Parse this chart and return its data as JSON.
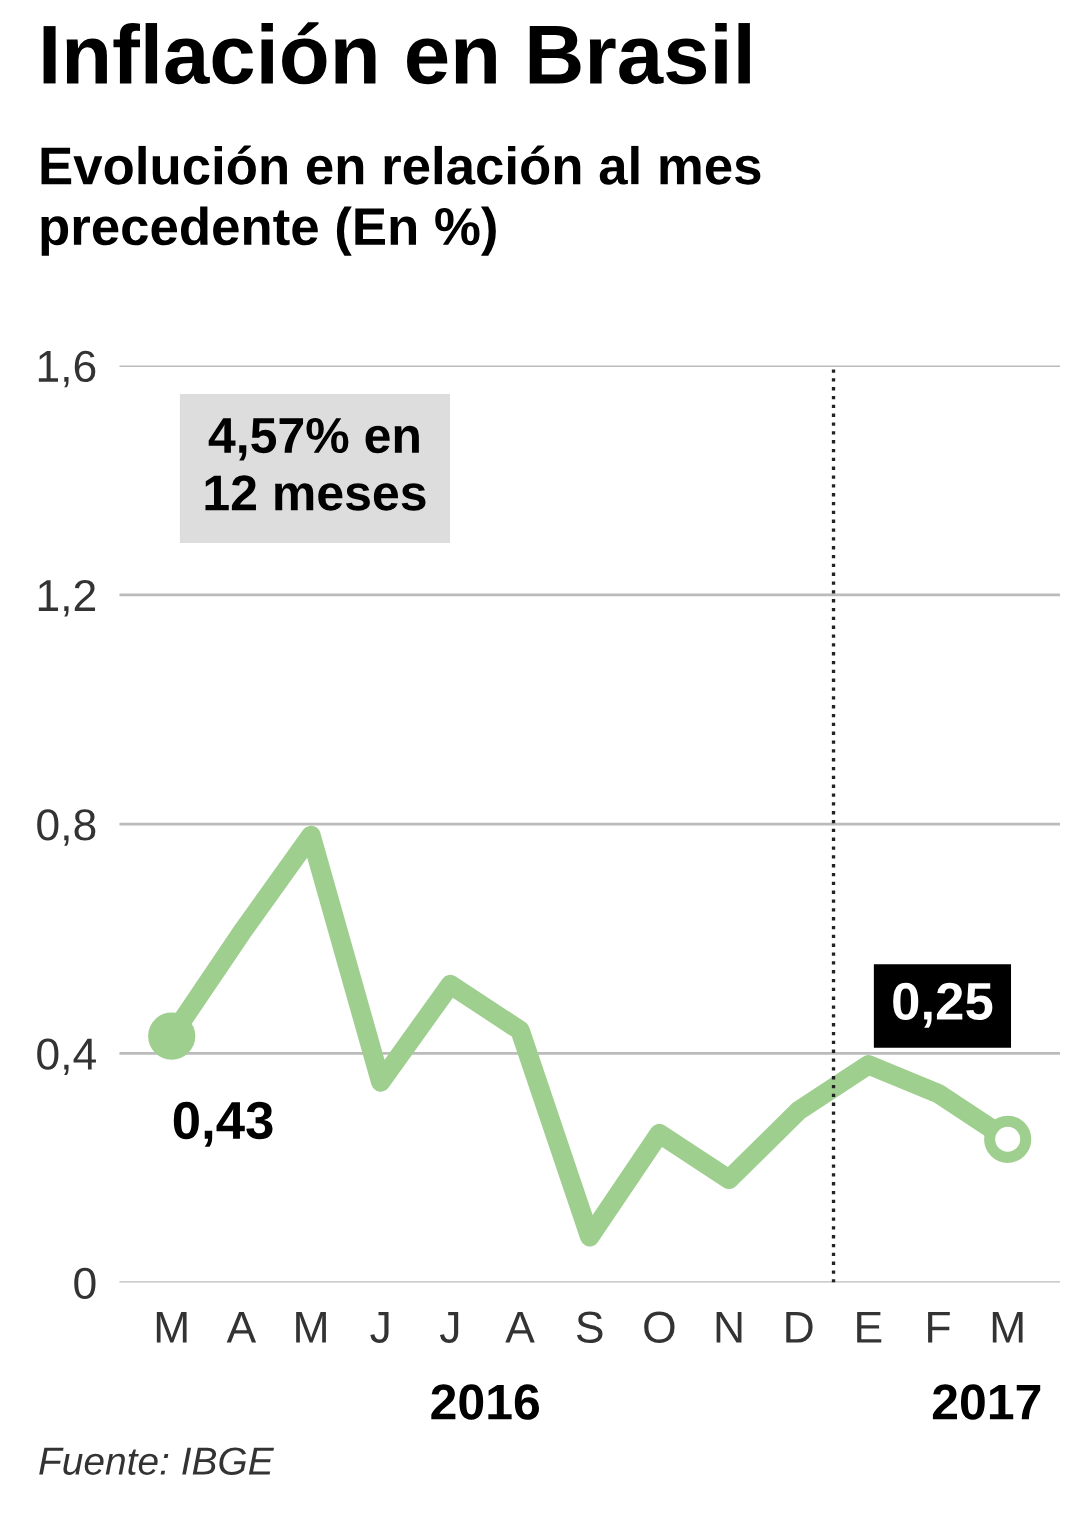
{
  "chart_data": {
    "type": "line",
    "title": "Inflación en Brasil",
    "subtitle": "Evolución en relación al mes\nprecedente (En %)",
    "categories": [
      "M",
      "A",
      "M",
      "J",
      "J",
      "A",
      "S",
      "O",
      "N",
      "D",
      "E",
      "F",
      "M"
    ],
    "series": [
      {
        "color": "#9fcf8f",
        "values": [
          0.43,
          0.61,
          0.78,
          0.35,
          0.52,
          0.44,
          0.08,
          0.26,
          0.18,
          0.3,
          0.38,
          0.33,
          0.25
        ],
        "value_labels": [
          "0,43",
          null,
          null,
          null,
          null,
          null,
          null,
          null,
          null,
          null,
          null,
          null,
          "0,25"
        ]
      }
    ],
    "ylim": [
      0,
      1.6
    ],
    "yticks": [
      {
        "value": 0,
        "label": "0"
      },
      {
        "value": 0.4,
        "label": "0,4"
      },
      {
        "value": 0.8,
        "label": "0,8"
      },
      {
        "value": 1.2,
        "label": "1,2"
      },
      {
        "value": 1.6,
        "label": "1,6"
      }
    ],
    "grid": "y",
    "ref_lines": [
      {
        "axis": "x",
        "value": "E",
        "line_style": "dotted",
        "color": "#222222"
      }
    ],
    "annotations": [
      "4,57% en\n12 meses",
      "2016",
      "2017",
      "Fuente: IBGE"
    ]
  }
}
